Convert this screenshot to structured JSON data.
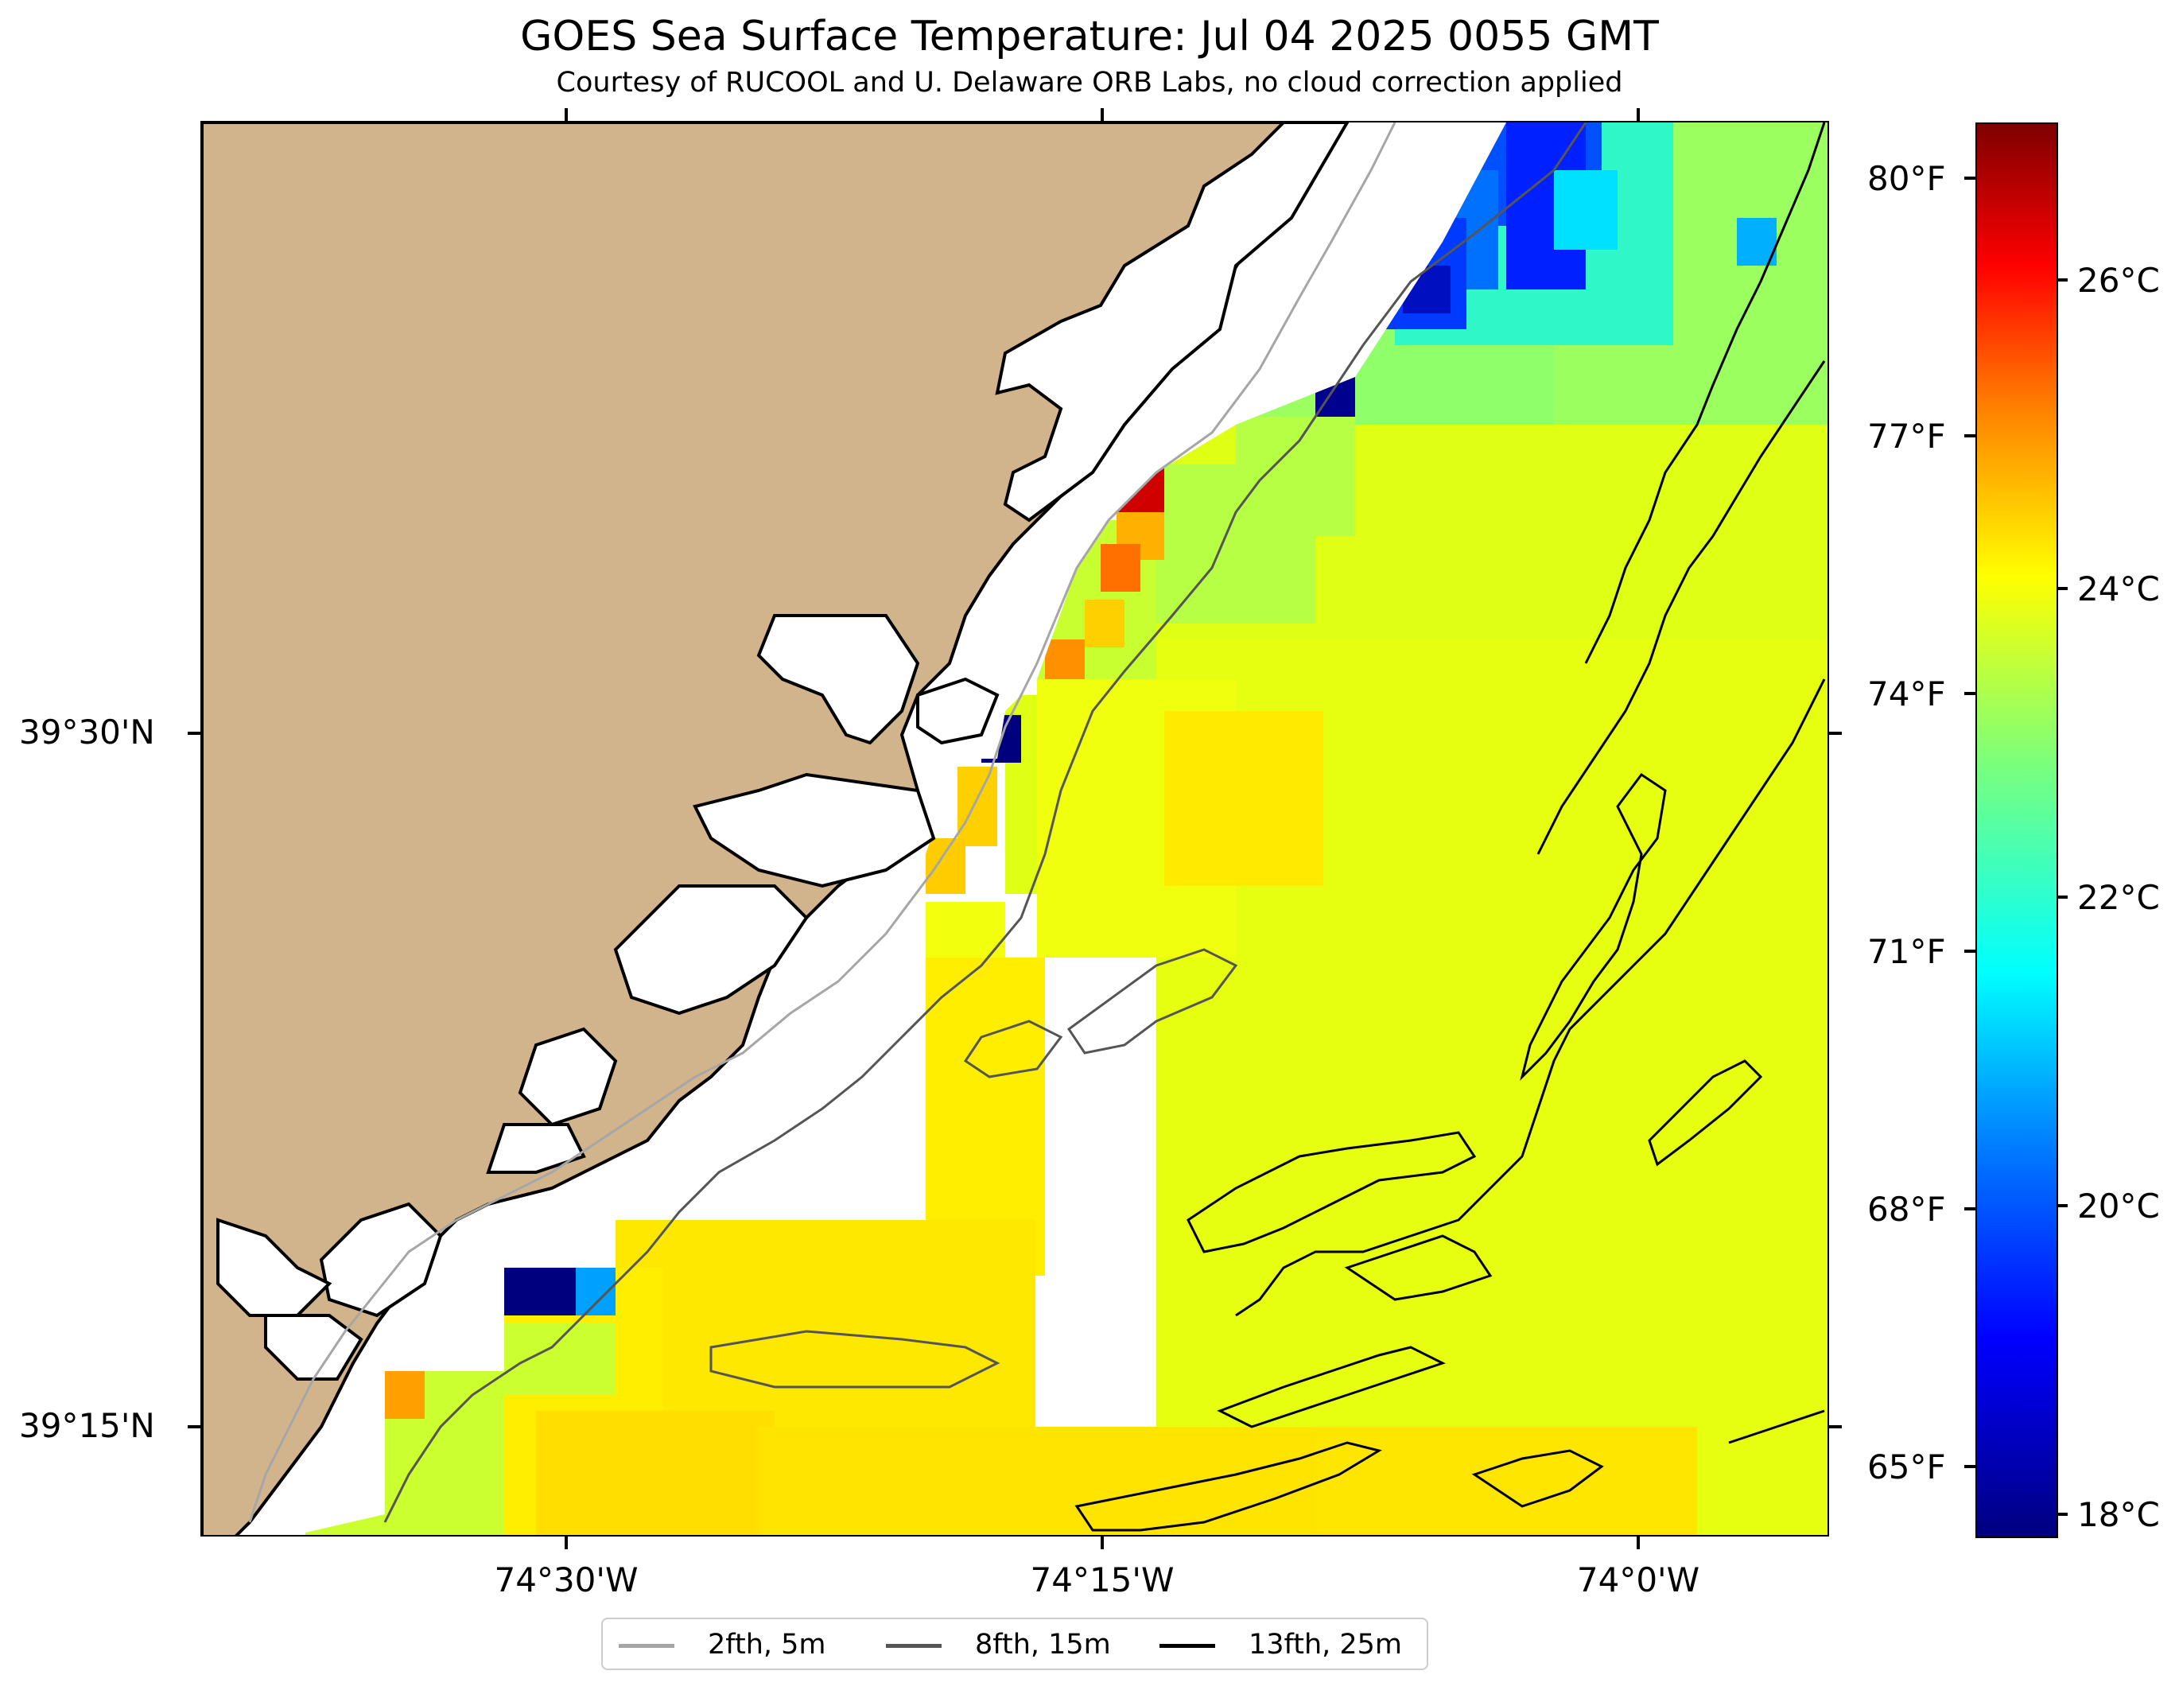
{
  "title": "GOES Sea Surface Temperature: Jul 04 2025 0055 GMT",
  "subtitle": "Courtesy of RUCOOL and U. Delaware ORB Labs, no cloud correction applied",
  "map": {
    "lat_labels": [
      "39°30'N",
      "39°15'N"
    ],
    "lon_labels": [
      "74°30'W",
      "74°15'W",
      "74°0'W"
    ],
    "land_color": "#d2b48c",
    "ocean_nodata_color": "#ffffff"
  },
  "colorbar": {
    "celsius_labels": [
      "26°C",
      "24°C",
      "22°C",
      "20°C",
      "18°C"
    ],
    "fahrenheit_labels": [
      "80°F",
      "77°F",
      "74°F",
      "71°F",
      "68°F",
      "65°F"
    ],
    "colormap": "jet",
    "range_c": [
      17.9,
      27.2
    ]
  },
  "legend": {
    "items": [
      {
        "label": "2fth, 5m",
        "color": "#a6a6a6"
      },
      {
        "label": "8fth, 15m",
        "color": "#555555"
      },
      {
        "label": "13fth, 25m",
        "color": "#000000"
      }
    ]
  }
}
